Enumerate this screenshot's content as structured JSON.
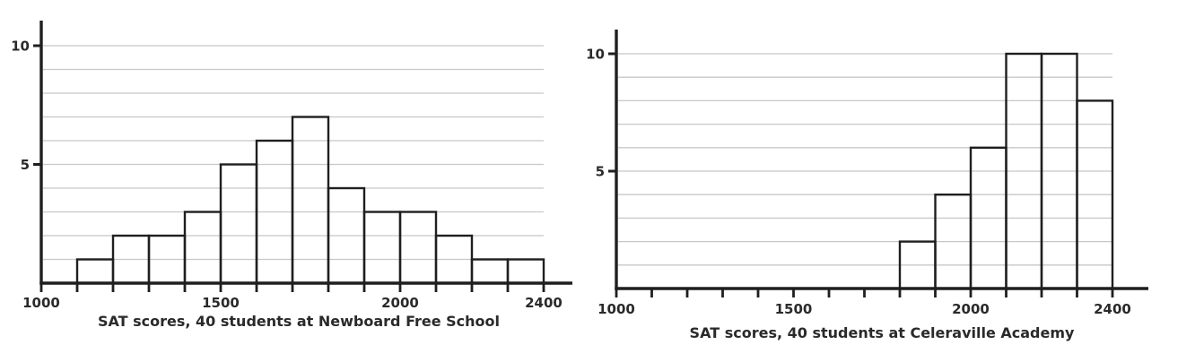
{
  "page": {
    "background": "#ffffff",
    "description_left_caption": "SAT scores, 40 students at Newboard Free School",
    "description_right_caption": "SAT scores, 40 students at Celeraville Academy"
  },
  "colors": {
    "axis": "#1f1f1f",
    "bar_outline": "#1f1f1f",
    "bar_fill": "none",
    "gridline": "#c8c8cb",
    "tick_text": "#2a2a2a",
    "caption_text": "#2a2a2a"
  },
  "chart_data": [
    {
      "type": "bar",
      "subtype": "histogram",
      "title": "SAT scores, 40 students at Newboard Free School",
      "school": "Newboard Free School",
      "total_students": 40,
      "xlabel": "",
      "ylabel": "",
      "bin_width": 100,
      "bins": [
        {
          "start": 1100,
          "end": 1200,
          "count": 1
        },
        {
          "start": 1200,
          "end": 1300,
          "count": 2
        },
        {
          "start": 1300,
          "end": 1400,
          "count": 2
        },
        {
          "start": 1400,
          "end": 1500,
          "count": 3
        },
        {
          "start": 1500,
          "end": 1600,
          "count": 5
        },
        {
          "start": 1600,
          "end": 1700,
          "count": 6
        },
        {
          "start": 1700,
          "end": 1800,
          "count": 7
        },
        {
          "start": 1800,
          "end": 1900,
          "count": 4
        },
        {
          "start": 1900,
          "end": 2000,
          "count": 3
        },
        {
          "start": 2000,
          "end": 2100,
          "count": 3
        },
        {
          "start": 2100,
          "end": 2200,
          "count": 2
        },
        {
          "start": 2200,
          "end": 2300,
          "count": 1
        },
        {
          "start": 2300,
          "end": 2400,
          "count": 1
        }
      ],
      "x_axis": {
        "min": 1000,
        "axis_end": 2480,
        "tick_min": 1000,
        "tick_max": 2400,
        "tick_step": 100,
        "labeled_ticks": [
          1000,
          1500,
          2000,
          2400
        ]
      },
      "y_axis": {
        "min": 0,
        "max": 11,
        "labeled_ticks": [
          5,
          10
        ],
        "gridlines": [
          1,
          2,
          3,
          4,
          5,
          6,
          7,
          8,
          9,
          10
        ]
      },
      "grid": "horizontal only, light gray, every 1 unit, spanning 1000-2400",
      "legend": "none"
    },
    {
      "type": "bar",
      "subtype": "histogram",
      "title": "SAT scores, 40 students at Celeraville Academy",
      "school": "Celeraville Academy",
      "total_students": 40,
      "xlabel": "",
      "ylabel": "",
      "bin_width": 100,
      "bins": [
        {
          "start": 1800,
          "end": 1900,
          "count": 2
        },
        {
          "start": 1900,
          "end": 2000,
          "count": 4
        },
        {
          "start": 2000,
          "end": 2100,
          "count": 6
        },
        {
          "start": 2100,
          "end": 2200,
          "count": 10
        },
        {
          "start": 2200,
          "end": 2300,
          "count": 10
        },
        {
          "start": 2300,
          "end": 2400,
          "count": 8
        }
      ],
      "x_axis": {
        "min": 1000,
        "axis_end": 2500,
        "tick_min": 1000,
        "tick_max": 2400,
        "tick_step": 100,
        "labeled_ticks": [
          1000,
          1500,
          2000,
          2400
        ]
      },
      "y_axis": {
        "min": 0,
        "max": 11,
        "labeled_ticks": [
          5,
          10
        ],
        "gridlines": [
          1,
          2,
          3,
          4,
          5,
          6,
          7,
          8,
          9,
          10
        ]
      },
      "grid": "horizontal only, light gray, every 1 unit, spanning 1000-2400",
      "legend": "none"
    }
  ]
}
